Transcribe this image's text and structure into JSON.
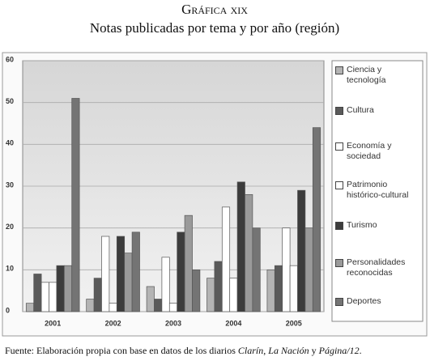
{
  "chart_data": {
    "type": "bar",
    "title": "Gráfica xix",
    "subtitle": "Notas publicadas por tema y por año (región)",
    "source": [
      "Fuente: Elaboración propia con base en datos de los diarios ",
      "Clarín",
      ", ",
      "La Nación",
      " y ",
      "Página/12",
      "."
    ],
    "categories": [
      "2001",
      "2002",
      "2003",
      "2004",
      "2005"
    ],
    "series": [
      {
        "name": "Ciencia y tecnología",
        "color": "#b4b4b4",
        "values": [
          2,
          3,
          6,
          8,
          10
        ]
      },
      {
        "name": "Cultura",
        "color": "#5a5a5a",
        "values": [
          9,
          8,
          3,
          12,
          11
        ]
      },
      {
        "name": "Economía y sociedad",
        "color": "#ffffff",
        "values": [
          7,
          18,
          13,
          25,
          20
        ]
      },
      {
        "name": "Patrimonio histórico-cultural",
        "color": "#ffffff",
        "values": [
          7,
          2,
          2,
          8,
          11
        ]
      },
      {
        "name": "Turismo",
        "color": "#3c3c3c",
        "values": [
          11,
          18,
          19,
          31,
          29
        ]
      },
      {
        "name": "Personalidades reconocidas",
        "color": "#9a9a9a",
        "values": [
          11,
          14,
          23,
          28,
          20
        ]
      },
      {
        "name": "Deportes",
        "color": "#747474",
        "values": [
          51,
          19,
          10,
          20,
          44
        ]
      }
    ],
    "ylim": [
      0,
      60
    ],
    "yticks": [
      0,
      10,
      20,
      30,
      40,
      50,
      60
    ],
    "grid": true,
    "legend": "right"
  }
}
